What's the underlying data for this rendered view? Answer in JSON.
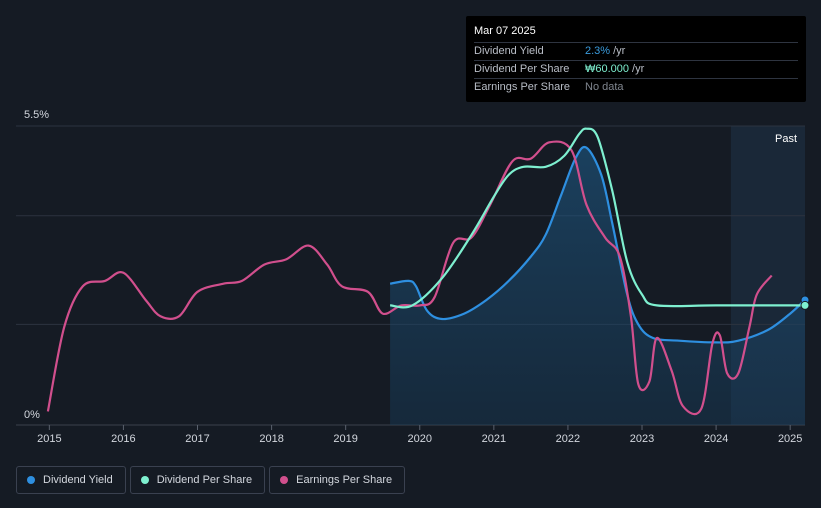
{
  "tooltip": {
    "date": "Mar 07 2025",
    "rows": [
      {
        "label": "Dividend Yield",
        "value": "2.3%",
        "unit": "/yr",
        "color": "#3a9bdc"
      },
      {
        "label": "Dividend Per Share",
        "value": "₩60.000",
        "unit": "/yr",
        "color": "#7ef0d0"
      },
      {
        "label": "Earnings Per Share",
        "value": "No data",
        "unit": "",
        "color": "#80868f"
      }
    ]
  },
  "past_label": "Past",
  "legend": [
    {
      "label": "Dividend Yield",
      "color": "#2e8fe0"
    },
    {
      "label": "Dividend Per Share",
      "color": "#7ef0d0"
    },
    {
      "label": "Earnings Per Share",
      "color": "#d14f8d"
    }
  ],
  "chart_data": {
    "type": "line",
    "x_ticks": [
      "2015",
      "2016",
      "2017",
      "2018",
      "2019",
      "2020",
      "2021",
      "2022",
      "2023",
      "2024",
      "2025"
    ],
    "y_ticks": [
      "5.5%",
      "0%"
    ],
    "ylim": [
      0,
      5.5
    ],
    "xlim": [
      2014.55,
      2025.2
    ],
    "grid": true,
    "past_region_start": 2024.2,
    "series": [
      {
        "name": "Dividend Yield",
        "color": "#2e8fe0",
        "fill": true,
        "points": [
          [
            2019.6,
            2.6
          ],
          [
            2019.85,
            2.65
          ],
          [
            2019.95,
            2.55
          ],
          [
            2020.1,
            2.1
          ],
          [
            2020.3,
            1.95
          ],
          [
            2020.6,
            2.05
          ],
          [
            2020.9,
            2.3
          ],
          [
            2021.2,
            2.65
          ],
          [
            2021.5,
            3.1
          ],
          [
            2021.7,
            3.5
          ],
          [
            2021.9,
            4.2
          ],
          [
            2022.1,
            4.9
          ],
          [
            2022.25,
            5.1
          ],
          [
            2022.45,
            4.6
          ],
          [
            2022.6,
            3.7
          ],
          [
            2022.8,
            2.4
          ],
          [
            2022.95,
            1.85
          ],
          [
            2023.15,
            1.6
          ],
          [
            2023.5,
            1.55
          ],
          [
            2024.0,
            1.52
          ],
          [
            2024.3,
            1.55
          ],
          [
            2024.7,
            1.75
          ],
          [
            2025.0,
            2.05
          ],
          [
            2025.2,
            2.3
          ]
        ]
      },
      {
        "name": "Dividend Per Share",
        "color": "#7ef0d0",
        "fill": false,
        "points": [
          [
            2019.6,
            2.2
          ],
          [
            2019.9,
            2.2
          ],
          [
            2020.3,
            2.7
          ],
          [
            2020.7,
            3.5
          ],
          [
            2021.0,
            4.2
          ],
          [
            2021.2,
            4.6
          ],
          [
            2021.4,
            4.75
          ],
          [
            2021.7,
            4.75
          ],
          [
            2021.95,
            4.95
          ],
          [
            2022.15,
            5.35
          ],
          [
            2022.25,
            5.45
          ],
          [
            2022.4,
            5.3
          ],
          [
            2022.6,
            4.3
          ],
          [
            2022.8,
            3.0
          ],
          [
            2023.0,
            2.4
          ],
          [
            2023.2,
            2.2
          ],
          [
            2024.0,
            2.2
          ],
          [
            2025.2,
            2.2
          ]
        ]
      },
      {
        "name": "Earnings Per Share",
        "color": "#d14f8d",
        "fill": false,
        "points": [
          [
            2014.98,
            0.25
          ],
          [
            2015.2,
            1.8
          ],
          [
            2015.45,
            2.55
          ],
          [
            2015.75,
            2.65
          ],
          [
            2016.0,
            2.8
          ],
          [
            2016.3,
            2.3
          ],
          [
            2016.5,
            2.0
          ],
          [
            2016.75,
            2.0
          ],
          [
            2017.0,
            2.45
          ],
          [
            2017.35,
            2.6
          ],
          [
            2017.6,
            2.65
          ],
          [
            2017.9,
            2.95
          ],
          [
            2018.2,
            3.05
          ],
          [
            2018.5,
            3.3
          ],
          [
            2018.75,
            2.95
          ],
          [
            2018.95,
            2.55
          ],
          [
            2019.3,
            2.45
          ],
          [
            2019.5,
            2.05
          ],
          [
            2019.75,
            2.2
          ],
          [
            2020.0,
            2.2
          ],
          [
            2020.2,
            2.35
          ],
          [
            2020.45,
            3.35
          ],
          [
            2020.7,
            3.45
          ],
          [
            2020.95,
            4.05
          ],
          [
            2021.25,
            4.85
          ],
          [
            2021.5,
            4.9
          ],
          [
            2021.75,
            5.2
          ],
          [
            2022.05,
            5.05
          ],
          [
            2022.25,
            4.05
          ],
          [
            2022.5,
            3.45
          ],
          [
            2022.7,
            3.1
          ],
          [
            2022.85,
            2.0
          ],
          [
            2022.95,
            0.75
          ],
          [
            2023.1,
            0.8
          ],
          [
            2023.2,
            1.6
          ],
          [
            2023.4,
            1.0
          ],
          [
            2023.55,
            0.35
          ],
          [
            2023.8,
            0.3
          ],
          [
            2023.95,
            1.5
          ],
          [
            2024.05,
            1.65
          ],
          [
            2024.15,
            0.95
          ],
          [
            2024.3,
            0.95
          ],
          [
            2024.45,
            1.8
          ],
          [
            2024.55,
            2.4
          ],
          [
            2024.75,
            2.75
          ]
        ]
      }
    ]
  }
}
